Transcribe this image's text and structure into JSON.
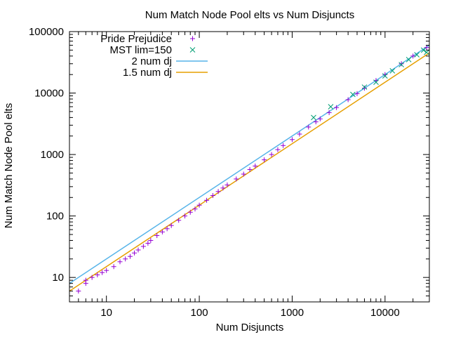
{
  "chart_data": {
    "type": "scatter",
    "title": "Num Match Node Pool elts vs Num Disjuncts",
    "xlabel": "Num Disjuncts",
    "ylabel": "Num Match Node Pool elts",
    "xscale": "log",
    "yscale": "log",
    "xlim": [
      4,
      30000
    ],
    "ylim": [
      4,
      100000
    ],
    "xticks": [
      10,
      100,
      1000,
      10000
    ],
    "xtick_labels": [
      "10",
      "100",
      "1000",
      "10000"
    ],
    "yticks": [
      10,
      100,
      1000,
      10000,
      100000
    ],
    "ytick_labels": [
      "10",
      "100",
      "1000",
      "10000",
      "100000"
    ],
    "grid": false,
    "legend_position": "top-left",
    "series": [
      {
        "name": "Pride Prejudice",
        "kind": "points",
        "marker": "+",
        "color": "#9400d3",
        "points": [
          [
            5,
            6
          ],
          [
            6,
            8
          ],
          [
            6,
            9
          ],
          [
            7,
            10
          ],
          [
            8,
            11
          ],
          [
            9,
            12
          ],
          [
            10,
            13
          ],
          [
            12,
            15
          ],
          [
            14,
            18
          ],
          [
            16,
            20
          ],
          [
            18,
            22
          ],
          [
            20,
            25
          ],
          [
            22,
            28
          ],
          [
            25,
            32
          ],
          [
            28,
            36
          ],
          [
            30,
            40
          ],
          [
            35,
            48
          ],
          [
            40,
            55
          ],
          [
            45,
            62
          ],
          [
            50,
            70
          ],
          [
            60,
            85
          ],
          [
            70,
            100
          ],
          [
            80,
            115
          ],
          [
            90,
            130
          ],
          [
            100,
            150
          ],
          [
            120,
            180
          ],
          [
            140,
            215
          ],
          [
            160,
            250
          ],
          [
            180,
            285
          ],
          [
            200,
            320
          ],
          [
            250,
            400
          ],
          [
            300,
            480
          ],
          [
            350,
            570
          ],
          [
            400,
            650
          ],
          [
            500,
            820
          ],
          [
            600,
            1000
          ],
          [
            700,
            1200
          ],
          [
            800,
            1400
          ],
          [
            1000,
            1750
          ],
          [
            1200,
            2150
          ],
          [
            1500,
            2800
          ],
          [
            1800,
            3400
          ],
          [
            2000,
            3800
          ],
          [
            2500,
            4800
          ],
          [
            3000,
            5800
          ],
          [
            4000,
            7800
          ],
          [
            5000,
            9800
          ],
          [
            6000,
            12000
          ],
          [
            8000,
            16000
          ],
          [
            10000,
            20000
          ],
          [
            15000,
            30000
          ],
          [
            20000,
            40000
          ],
          [
            28000,
            55000
          ]
        ]
      },
      {
        "name": "MST lim=150",
        "kind": "points",
        "marker": "x",
        "color": "#009e73",
        "points": [
          [
            1700,
            4000
          ],
          [
            2600,
            6000
          ],
          [
            4500,
            9500
          ],
          [
            6000,
            12500
          ],
          [
            8000,
            15000
          ],
          [
            10000,
            19000
          ],
          [
            12000,
            23000
          ],
          [
            15000,
            29000
          ],
          [
            18000,
            35000
          ],
          [
            22000,
            42000
          ],
          [
            26000,
            50000
          ],
          [
            28000,
            46000
          ]
        ]
      },
      {
        "name": "2 num dj",
        "kind": "line",
        "multiplier": 2,
        "color": "#56b4e9"
      },
      {
        "name": "1.5 num dj",
        "kind": "line",
        "multiplier": 1.5,
        "color": "#e69f00"
      }
    ]
  }
}
